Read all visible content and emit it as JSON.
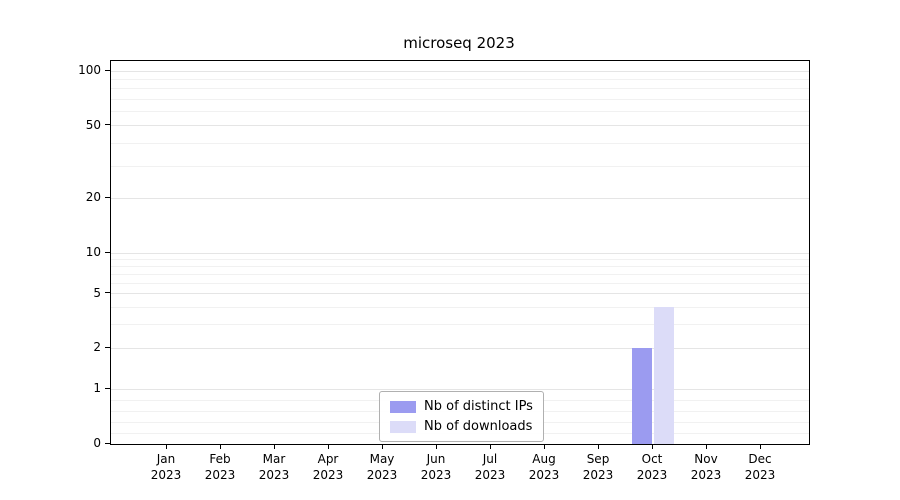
{
  "chart_data": {
    "type": "bar",
    "title": "microseq 2023",
    "categories": [
      "Jan 2023",
      "Feb 2023",
      "Mar 2023",
      "Apr 2023",
      "May 2023",
      "Jun 2023",
      "Jul 2023",
      "Aug 2023",
      "Sep 2023",
      "Oct 2023",
      "Nov 2023",
      "Dec 2023"
    ],
    "series": [
      {
        "name": "Nb of distinct IPs",
        "color": "#9b9bf0",
        "values": [
          0,
          0,
          0,
          0,
          0,
          0,
          0,
          0,
          0,
          2,
          0,
          0
        ]
      },
      {
        "name": "Nb of downloads",
        "color": "#dcdcf8",
        "values": [
          0,
          0,
          0,
          0,
          0,
          0,
          0,
          0,
          0,
          4,
          0,
          0
        ]
      }
    ],
    "yscale": "symlog",
    "y_ticks": [
      "0",
      "1",
      "2",
      "5",
      "10",
      "20",
      "50",
      "100"
    ],
    "ylim": [
      0,
      110
    ],
    "grid": "horizontal",
    "legend_position": "lower-center-inside"
  }
}
